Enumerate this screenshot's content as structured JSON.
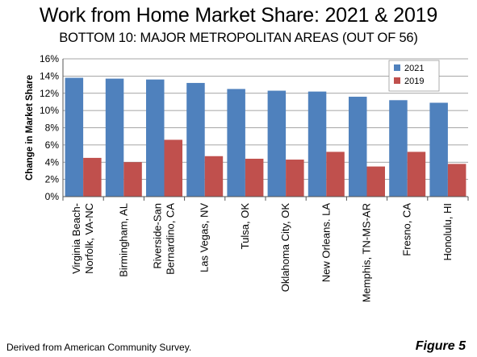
{
  "title": "Work from Home Market Share: 2021 & 2019",
  "subtitle": "BOTTOM 10: MAJOR METROPOLITAN AREAS (OUT OF 56)",
  "source": "Derived from American Community Survey.",
  "figure_label": "Figure 5",
  "colors": {
    "series_2021": "#4f81bd",
    "series_2019": "#c0504d",
    "grid": "#888888",
    "axis": "#555555"
  },
  "chart_data": {
    "type": "bar",
    "title": "",
    "xlabel": "",
    "ylabel": "Change in Market Share",
    "ylim": [
      0,
      16
    ],
    "yticks": [
      "0%",
      "2%",
      "4%",
      "6%",
      "8%",
      "10%",
      "12%",
      "14%",
      "16%"
    ],
    "grid": true,
    "legend_position": "top-right",
    "categories": [
      [
        "Virginia Beach-",
        "Norfolk, VA-NC"
      ],
      [
        "Birmingham, AL"
      ],
      [
        "Riverside-San",
        "Bernardino, CA"
      ],
      [
        "Las Vegas, NV"
      ],
      [
        "Tulsa, OK"
      ],
      [
        "Oklahoma City, OK"
      ],
      [
        "New Orleans. LA"
      ],
      [
        "Memphis, TN-MS-AR"
      ],
      [
        "Fresno, CA"
      ],
      [
        "Honolulu, HI"
      ]
    ],
    "series": [
      {
        "name": "2021",
        "values": [
          13.8,
          13.7,
          13.6,
          13.2,
          12.5,
          12.3,
          12.2,
          11.6,
          11.2,
          10.9
        ]
      },
      {
        "name": "2019",
        "values": [
          4.5,
          4.0,
          6.6,
          4.7,
          4.4,
          4.3,
          5.2,
          3.5,
          5.2,
          3.8
        ]
      }
    ]
  }
}
